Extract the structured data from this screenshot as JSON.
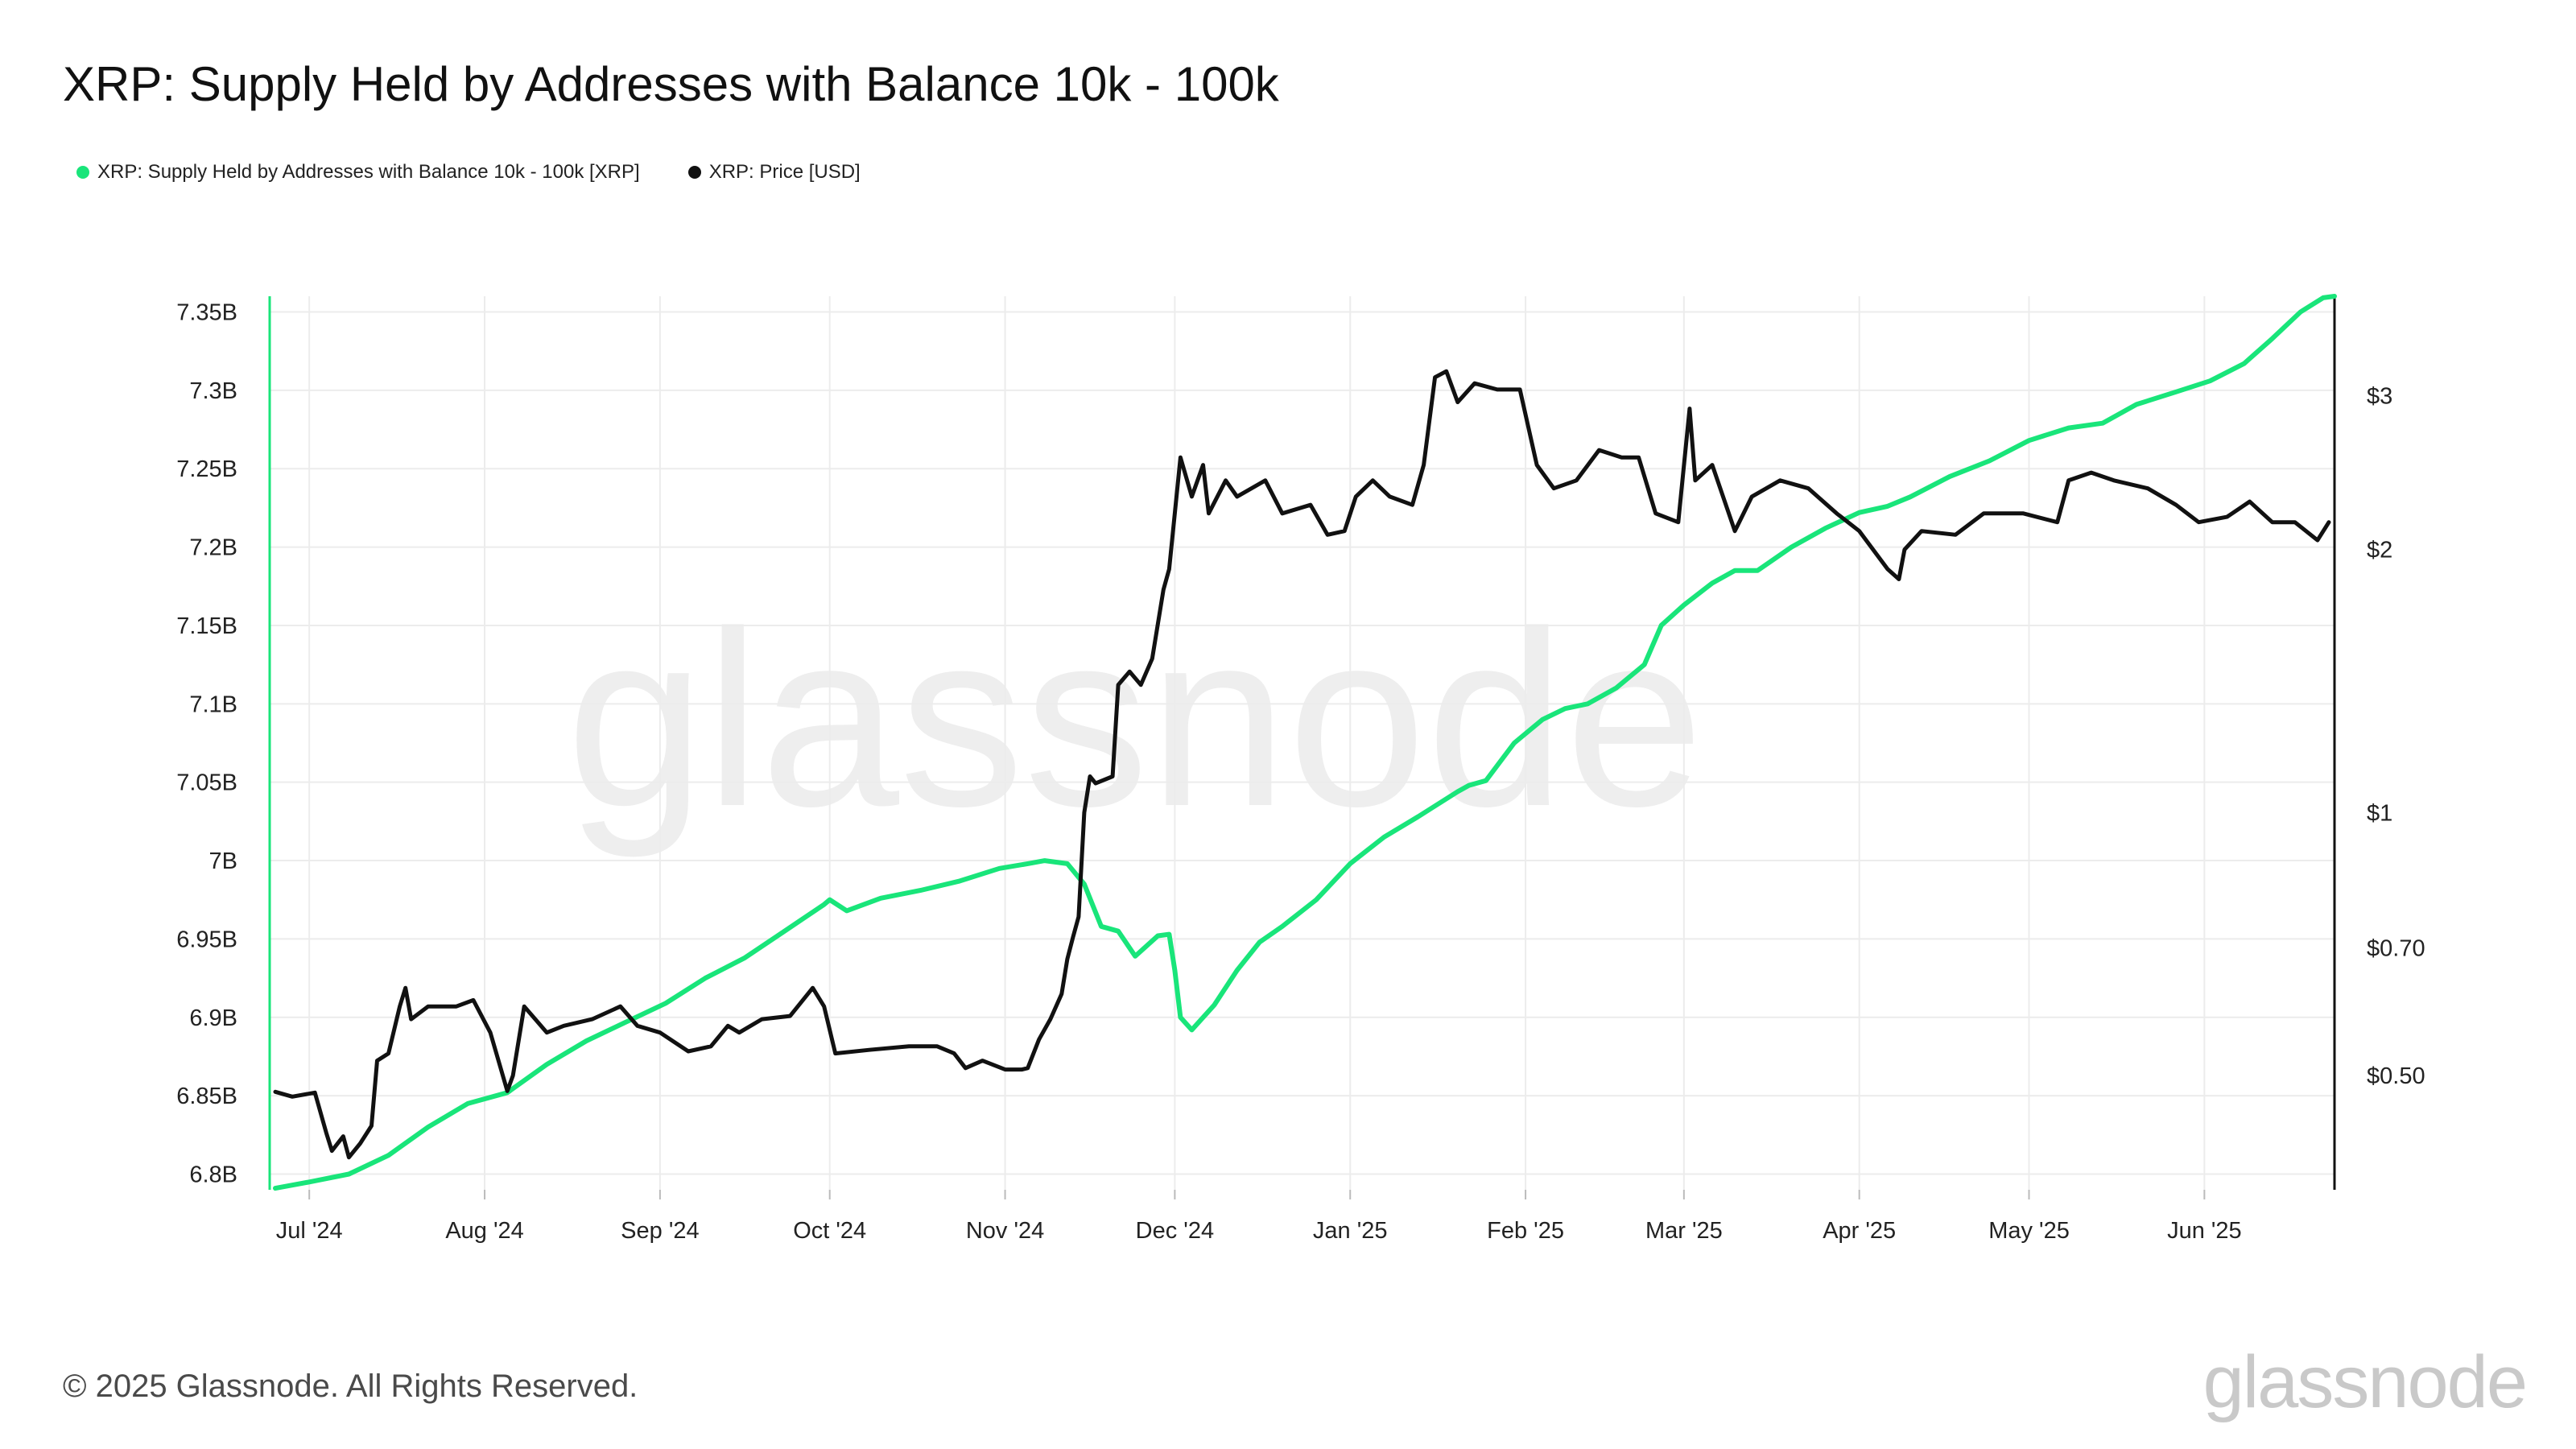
{
  "title": "XRP: Supply Held by Addresses with Balance 10k - 100k",
  "legend": [
    {
      "label": "XRP: Supply Held by Addresses with Balance 10k - 100k [XRP]",
      "color": "#19e57a"
    },
    {
      "label": "XRP: Price [USD]",
      "color": "#111111"
    }
  ],
  "watermark": "glassnode",
  "footer": "© 2025 Glassnode. All Rights Reserved.",
  "logo": "glassnode",
  "colors": {
    "supply": "#19e57a",
    "price": "#111111",
    "grid": "#ececec",
    "axis_text": "#222222"
  },
  "chart_data": {
    "type": "line",
    "x_start": "2024-06-24",
    "x_end": "2025-06-24",
    "x_ticks": [
      {
        "label": "Jul '24",
        "date": "2024-07-01"
      },
      {
        "label": "Aug '24",
        "date": "2024-08-01"
      },
      {
        "label": "Sep '24",
        "date": "2024-09-01"
      },
      {
        "label": "Oct '24",
        "date": "2024-10-01"
      },
      {
        "label": "Nov '24",
        "date": "2024-11-01"
      },
      {
        "label": "Dec '24",
        "date": "2024-12-01"
      },
      {
        "label": "Jan '25",
        "date": "2025-01-01"
      },
      {
        "label": "Feb '25",
        "date": "2025-02-01"
      },
      {
        "label": "Mar '25",
        "date": "2025-03-01"
      },
      {
        "label": "Apr '25",
        "date": "2025-04-01"
      },
      {
        "label": "May '25",
        "date": "2025-05-01"
      },
      {
        "label": "Jun '25",
        "date": "2025-06-01"
      }
    ],
    "y_left": {
      "unit": "XRP",
      "range": [
        6.79,
        7.36
      ],
      "ticks": [
        {
          "label": "7.35B",
          "value": 7.35
        },
        {
          "label": "7.3B",
          "value": 7.3
        },
        {
          "label": "7.25B",
          "value": 7.25
        },
        {
          "label": "7.2B",
          "value": 7.2
        },
        {
          "label": "7.15B",
          "value": 7.15
        },
        {
          "label": "7.1B",
          "value": 7.1
        },
        {
          "label": "7.05B",
          "value": 7.05
        },
        {
          "label": "7B",
          "value": 7.0
        },
        {
          "label": "6.95B",
          "value": 6.95
        },
        {
          "label": "6.9B",
          "value": 6.9
        },
        {
          "label": "6.85B",
          "value": 6.85
        },
        {
          "label": "6.8B",
          "value": 6.8
        }
      ]
    },
    "y_right": {
      "unit": "USD",
      "scale": "log",
      "range": [
        0.37,
        3.9
      ],
      "ticks": [
        {
          "label": "$3",
          "value": 3
        },
        {
          "label": "$2",
          "value": 2
        },
        {
          "label": "$1",
          "value": 1
        },
        {
          "label": "$0.70",
          "value": 0.7
        },
        {
          "label": "$0.50",
          "value": 0.5
        }
      ]
    },
    "grid": true,
    "series": [
      {
        "name": "XRP: Supply Held by Addresses with Balance 10k - 100k [XRP]",
        "axis": "left",
        "color": "#19e57a",
        "unit": "billion XRP",
        "points": [
          [
            "2024-06-25",
            6.791
          ],
          [
            "2024-07-01",
            6.795
          ],
          [
            "2024-07-08",
            6.8
          ],
          [
            "2024-07-15",
            6.812
          ],
          [
            "2024-07-22",
            6.83
          ],
          [
            "2024-07-29",
            6.845
          ],
          [
            "2024-08-05",
            6.852
          ],
          [
            "2024-08-12",
            6.87
          ],
          [
            "2024-08-19",
            6.885
          ],
          [
            "2024-08-26",
            6.897
          ],
          [
            "2024-09-02",
            6.909
          ],
          [
            "2024-09-09",
            6.925
          ],
          [
            "2024-09-16",
            6.938
          ],
          [
            "2024-09-23",
            6.955
          ],
          [
            "2024-09-30",
            6.972
          ],
          [
            "2024-10-01",
            6.975
          ],
          [
            "2024-10-04",
            6.968
          ],
          [
            "2024-10-10",
            6.976
          ],
          [
            "2024-10-17",
            6.981
          ],
          [
            "2024-10-24",
            6.987
          ],
          [
            "2024-10-31",
            6.995
          ],
          [
            "2024-11-05",
            6.998
          ],
          [
            "2024-11-08",
            7.0
          ],
          [
            "2024-11-12",
            6.998
          ],
          [
            "2024-11-15",
            6.985
          ],
          [
            "2024-11-18",
            6.958
          ],
          [
            "2024-11-21",
            6.955
          ],
          [
            "2024-11-24",
            6.939
          ],
          [
            "2024-11-28",
            6.952
          ],
          [
            "2024-11-30",
            6.953
          ],
          [
            "2024-12-01",
            6.93
          ],
          [
            "2024-12-02",
            6.9
          ],
          [
            "2024-12-04",
            6.892
          ],
          [
            "2024-12-08",
            6.908
          ],
          [
            "2024-12-12",
            6.93
          ],
          [
            "2024-12-16",
            6.948
          ],
          [
            "2024-12-20",
            6.958
          ],
          [
            "2024-12-26",
            6.975
          ],
          [
            "2025-01-01",
            6.998
          ],
          [
            "2025-01-07",
            7.015
          ],
          [
            "2025-01-13",
            7.028
          ],
          [
            "2025-01-20",
            7.044
          ],
          [
            "2025-01-22",
            7.048
          ],
          [
            "2025-01-25",
            7.051
          ],
          [
            "2025-01-30",
            7.075
          ],
          [
            "2025-02-04",
            7.09
          ],
          [
            "2025-02-08",
            7.097
          ],
          [
            "2025-02-12",
            7.1
          ],
          [
            "2025-02-17",
            7.11
          ],
          [
            "2025-02-22",
            7.125
          ],
          [
            "2025-02-25",
            7.15
          ],
          [
            "2025-03-01",
            7.163
          ],
          [
            "2025-03-06",
            7.177
          ],
          [
            "2025-03-10",
            7.185
          ],
          [
            "2025-03-14",
            7.185
          ],
          [
            "2025-03-20",
            7.2
          ],
          [
            "2025-03-26",
            7.212
          ],
          [
            "2025-04-01",
            7.222
          ],
          [
            "2025-04-06",
            7.226
          ],
          [
            "2025-04-10",
            7.232
          ],
          [
            "2025-04-17",
            7.245
          ],
          [
            "2025-04-24",
            7.255
          ],
          [
            "2025-05-01",
            7.268
          ],
          [
            "2025-05-08",
            7.276
          ],
          [
            "2025-05-14",
            7.279
          ],
          [
            "2025-05-20",
            7.291
          ],
          [
            "2025-05-27",
            7.299
          ],
          [
            "2025-06-02",
            7.306
          ],
          [
            "2025-06-08",
            7.317
          ],
          [
            "2025-06-13",
            7.333
          ],
          [
            "2025-06-18",
            7.35
          ],
          [
            "2025-06-22",
            7.359
          ],
          [
            "2025-06-24",
            7.36
          ]
        ]
      },
      {
        "name": "XRP: Price [USD]",
        "axis": "right",
        "color": "#111111",
        "unit": "USD",
        "points": [
          [
            "2024-06-25",
            0.479
          ],
          [
            "2024-06-28",
            0.473
          ],
          [
            "2024-07-02",
            0.478
          ],
          [
            "2024-07-04",
            0.43
          ],
          [
            "2024-07-05",
            0.41
          ],
          [
            "2024-07-07",
            0.426
          ],
          [
            "2024-07-08",
            0.403
          ],
          [
            "2024-07-10",
            0.418
          ],
          [
            "2024-07-12",
            0.438
          ],
          [
            "2024-07-13",
            0.52
          ],
          [
            "2024-07-15",
            0.53
          ],
          [
            "2024-07-17",
            0.6
          ],
          [
            "2024-07-18",
            0.63
          ],
          [
            "2024-07-19",
            0.58
          ],
          [
            "2024-07-22",
            0.6
          ],
          [
            "2024-07-27",
            0.6
          ],
          [
            "2024-07-30",
            0.61
          ],
          [
            "2024-08-02",
            0.56
          ],
          [
            "2024-08-05",
            0.48
          ],
          [
            "2024-08-06",
            0.5
          ],
          [
            "2024-08-08",
            0.6
          ],
          [
            "2024-08-12",
            0.56
          ],
          [
            "2024-08-15",
            0.57
          ],
          [
            "2024-08-20",
            0.58
          ],
          [
            "2024-08-25",
            0.6
          ],
          [
            "2024-08-28",
            0.57
          ],
          [
            "2024-09-01",
            0.56
          ],
          [
            "2024-09-06",
            0.533
          ],
          [
            "2024-09-10",
            0.54
          ],
          [
            "2024-09-13",
            0.57
          ],
          [
            "2024-09-15",
            0.56
          ],
          [
            "2024-09-19",
            0.58
          ],
          [
            "2024-09-24",
            0.585
          ],
          [
            "2024-09-28",
            0.63
          ],
          [
            "2024-09-30",
            0.6
          ],
          [
            "2024-10-02",
            0.53
          ],
          [
            "2024-10-08",
            0.535
          ],
          [
            "2024-10-15",
            0.54
          ],
          [
            "2024-10-20",
            0.54
          ],
          [
            "2024-10-23",
            0.53
          ],
          [
            "2024-10-25",
            0.51
          ],
          [
            "2024-10-28",
            0.52
          ],
          [
            "2024-11-01",
            0.508
          ],
          [
            "2024-11-04",
            0.508
          ],
          [
            "2024-11-05",
            0.51
          ],
          [
            "2024-11-07",
            0.55
          ],
          [
            "2024-11-09",
            0.58
          ],
          [
            "2024-11-11",
            0.62
          ],
          [
            "2024-11-12",
            0.68
          ],
          [
            "2024-11-13",
            0.72
          ],
          [
            "2024-11-14",
            0.76
          ],
          [
            "2024-11-15",
            1.0
          ],
          [
            "2024-11-16",
            1.1
          ],
          [
            "2024-11-17",
            1.08
          ],
          [
            "2024-11-20",
            1.1
          ],
          [
            "2024-11-21",
            1.4
          ],
          [
            "2024-11-23",
            1.45
          ],
          [
            "2024-11-25",
            1.4
          ],
          [
            "2024-11-27",
            1.5
          ],
          [
            "2024-11-29",
            1.8
          ],
          [
            "2024-11-30",
            1.9
          ],
          [
            "2024-12-02",
            2.55
          ],
          [
            "2024-12-04",
            2.3
          ],
          [
            "2024-12-06",
            2.5
          ],
          [
            "2024-12-07",
            2.2
          ],
          [
            "2024-12-10",
            2.4
          ],
          [
            "2024-12-12",
            2.3
          ],
          [
            "2024-12-17",
            2.4
          ],
          [
            "2024-12-20",
            2.2
          ],
          [
            "2024-12-25",
            2.25
          ],
          [
            "2024-12-28",
            2.08
          ],
          [
            "2024-12-31",
            2.1
          ],
          [
            "2025-01-02",
            2.3
          ],
          [
            "2025-01-05",
            2.4
          ],
          [
            "2025-01-08",
            2.3
          ],
          [
            "2025-01-12",
            2.25
          ],
          [
            "2025-01-14",
            2.5
          ],
          [
            "2025-01-16",
            3.15
          ],
          [
            "2025-01-18",
            3.2
          ],
          [
            "2025-01-20",
            2.95
          ],
          [
            "2025-01-23",
            3.1
          ],
          [
            "2025-01-27",
            3.05
          ],
          [
            "2025-01-31",
            3.05
          ],
          [
            "2025-02-03",
            2.5
          ],
          [
            "2025-02-06",
            2.35
          ],
          [
            "2025-02-10",
            2.4
          ],
          [
            "2025-02-14",
            2.6
          ],
          [
            "2025-02-18",
            2.55
          ],
          [
            "2025-02-21",
            2.55
          ],
          [
            "2025-02-24",
            2.2
          ],
          [
            "2025-02-28",
            2.15
          ],
          [
            "2025-03-02",
            2.9
          ],
          [
            "2025-03-03",
            2.4
          ],
          [
            "2025-03-06",
            2.5
          ],
          [
            "2025-03-10",
            2.1
          ],
          [
            "2025-03-13",
            2.3
          ],
          [
            "2025-03-18",
            2.4
          ],
          [
            "2025-03-23",
            2.35
          ],
          [
            "2025-03-28",
            2.2
          ],
          [
            "2025-04-01",
            2.1
          ],
          [
            "2025-04-06",
            1.9
          ],
          [
            "2025-04-08",
            1.85
          ],
          [
            "2025-04-09",
            2.0
          ],
          [
            "2025-04-12",
            2.1
          ],
          [
            "2025-04-18",
            2.08
          ],
          [
            "2025-04-23",
            2.2
          ],
          [
            "2025-04-30",
            2.2
          ],
          [
            "2025-05-06",
            2.15
          ],
          [
            "2025-05-08",
            2.4
          ],
          [
            "2025-05-12",
            2.45
          ],
          [
            "2025-05-16",
            2.4
          ],
          [
            "2025-05-22",
            2.35
          ],
          [
            "2025-05-27",
            2.25
          ],
          [
            "2025-05-31",
            2.15
          ],
          [
            "2025-06-05",
            2.18
          ],
          [
            "2025-06-09",
            2.27
          ],
          [
            "2025-06-13",
            2.15
          ],
          [
            "2025-06-17",
            2.15
          ],
          [
            "2025-06-21",
            2.05
          ],
          [
            "2025-06-23",
            2.15
          ]
        ]
      }
    ]
  }
}
